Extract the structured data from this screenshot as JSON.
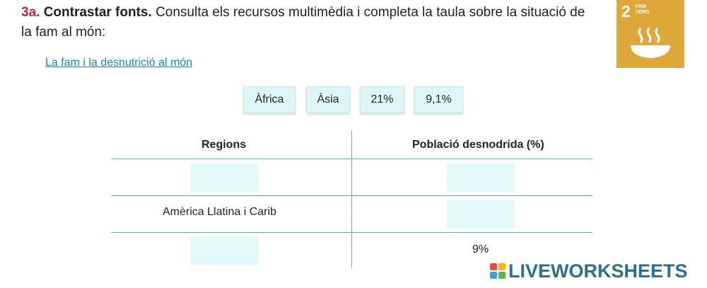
{
  "exercise": {
    "number": "3a.",
    "title": "Contrastar fonts.",
    "instruction": "Consulta els recursos multimèdia i completa la taula sobre la situació de la fam al món:"
  },
  "resource_link": "La fam i la desnutrició al món",
  "sdg_badge": {
    "number": "2",
    "line1": "FAM",
    "line2": "ZERO",
    "color": "#dda73a",
    "icon": "food-bowl-icon"
  },
  "answer_chips": [
    "Àfrica",
    "Àsia",
    "21%",
    "9,1%"
  ],
  "table": {
    "headers": [
      "Regions",
      "Població desnodrida (%)"
    ],
    "rows": [
      {
        "region": "",
        "value": ""
      },
      {
        "region": "Amèrica Llatina i Carib",
        "value": ""
      },
      {
        "region": "",
        "value": "9%"
      }
    ]
  },
  "brand": "LIVEWORKSHEETS",
  "colors": {
    "accent_red": "#d6213f",
    "link": "#1a8a9a",
    "table_line": "#4fb3c9",
    "drop_zone": "#e4faf8",
    "chip": "#dff6f8"
  }
}
